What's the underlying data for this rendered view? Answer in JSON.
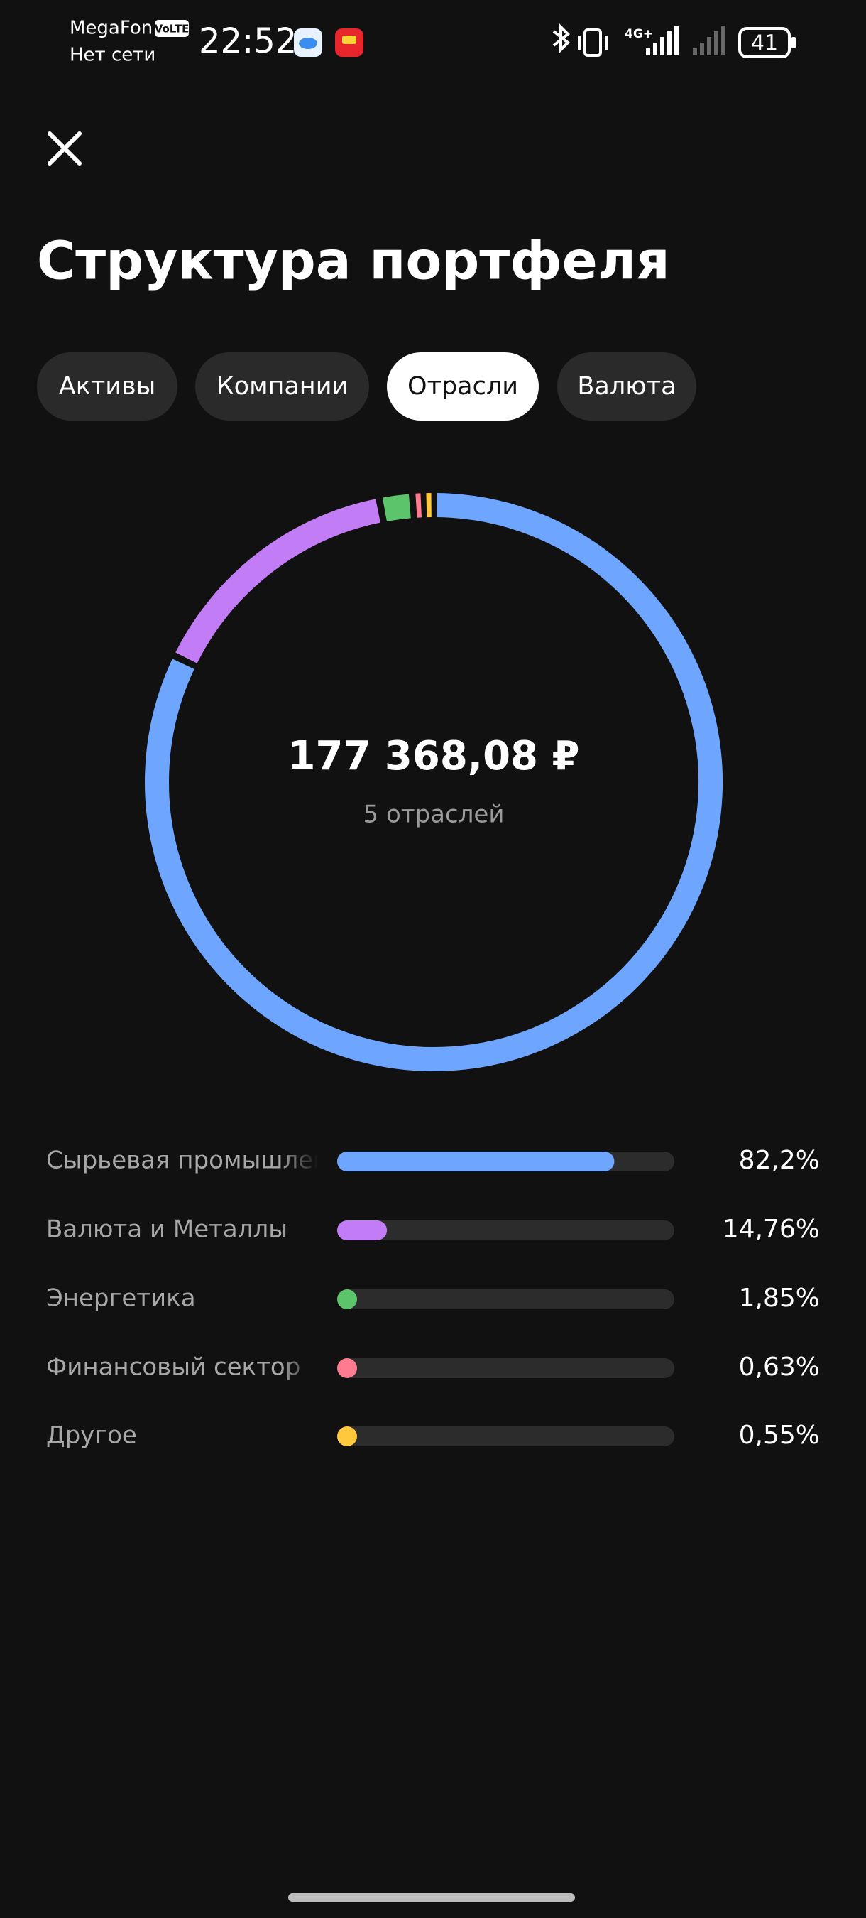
{
  "status_bar": {
    "carrier": "MegaFon",
    "volte": "VoLTE",
    "network": "Нет сети",
    "time": "22:52",
    "net_type": "4G+",
    "battery": "41"
  },
  "header": {
    "title": "Структура портфеля"
  },
  "tabs": {
    "items": [
      "Активы",
      "Компании",
      "Отрасли",
      "Валюта"
    ],
    "active_index": 2
  },
  "chart_data": {
    "type": "donut",
    "center_value": "177 368,08 ₽",
    "center_label": "5 отраслей",
    "categories": [
      "Сырьевая промышлен",
      "Валюта и Металлы",
      "Энергетика",
      "Финансовый сектор",
      "Другое"
    ],
    "values": [
      82.2,
      14.76,
      1.85,
      0.63,
      0.55
    ],
    "value_labels": [
      "82,2%",
      "14,76%",
      "1,85%",
      "0,63%",
      "0,55%"
    ],
    "colors": [
      "#6ea6ff",
      "#c27cf5",
      "#5cc46a",
      "#ff7b8f",
      "#ffc83d"
    ],
    "xlim": [
      0,
      100
    ]
  }
}
